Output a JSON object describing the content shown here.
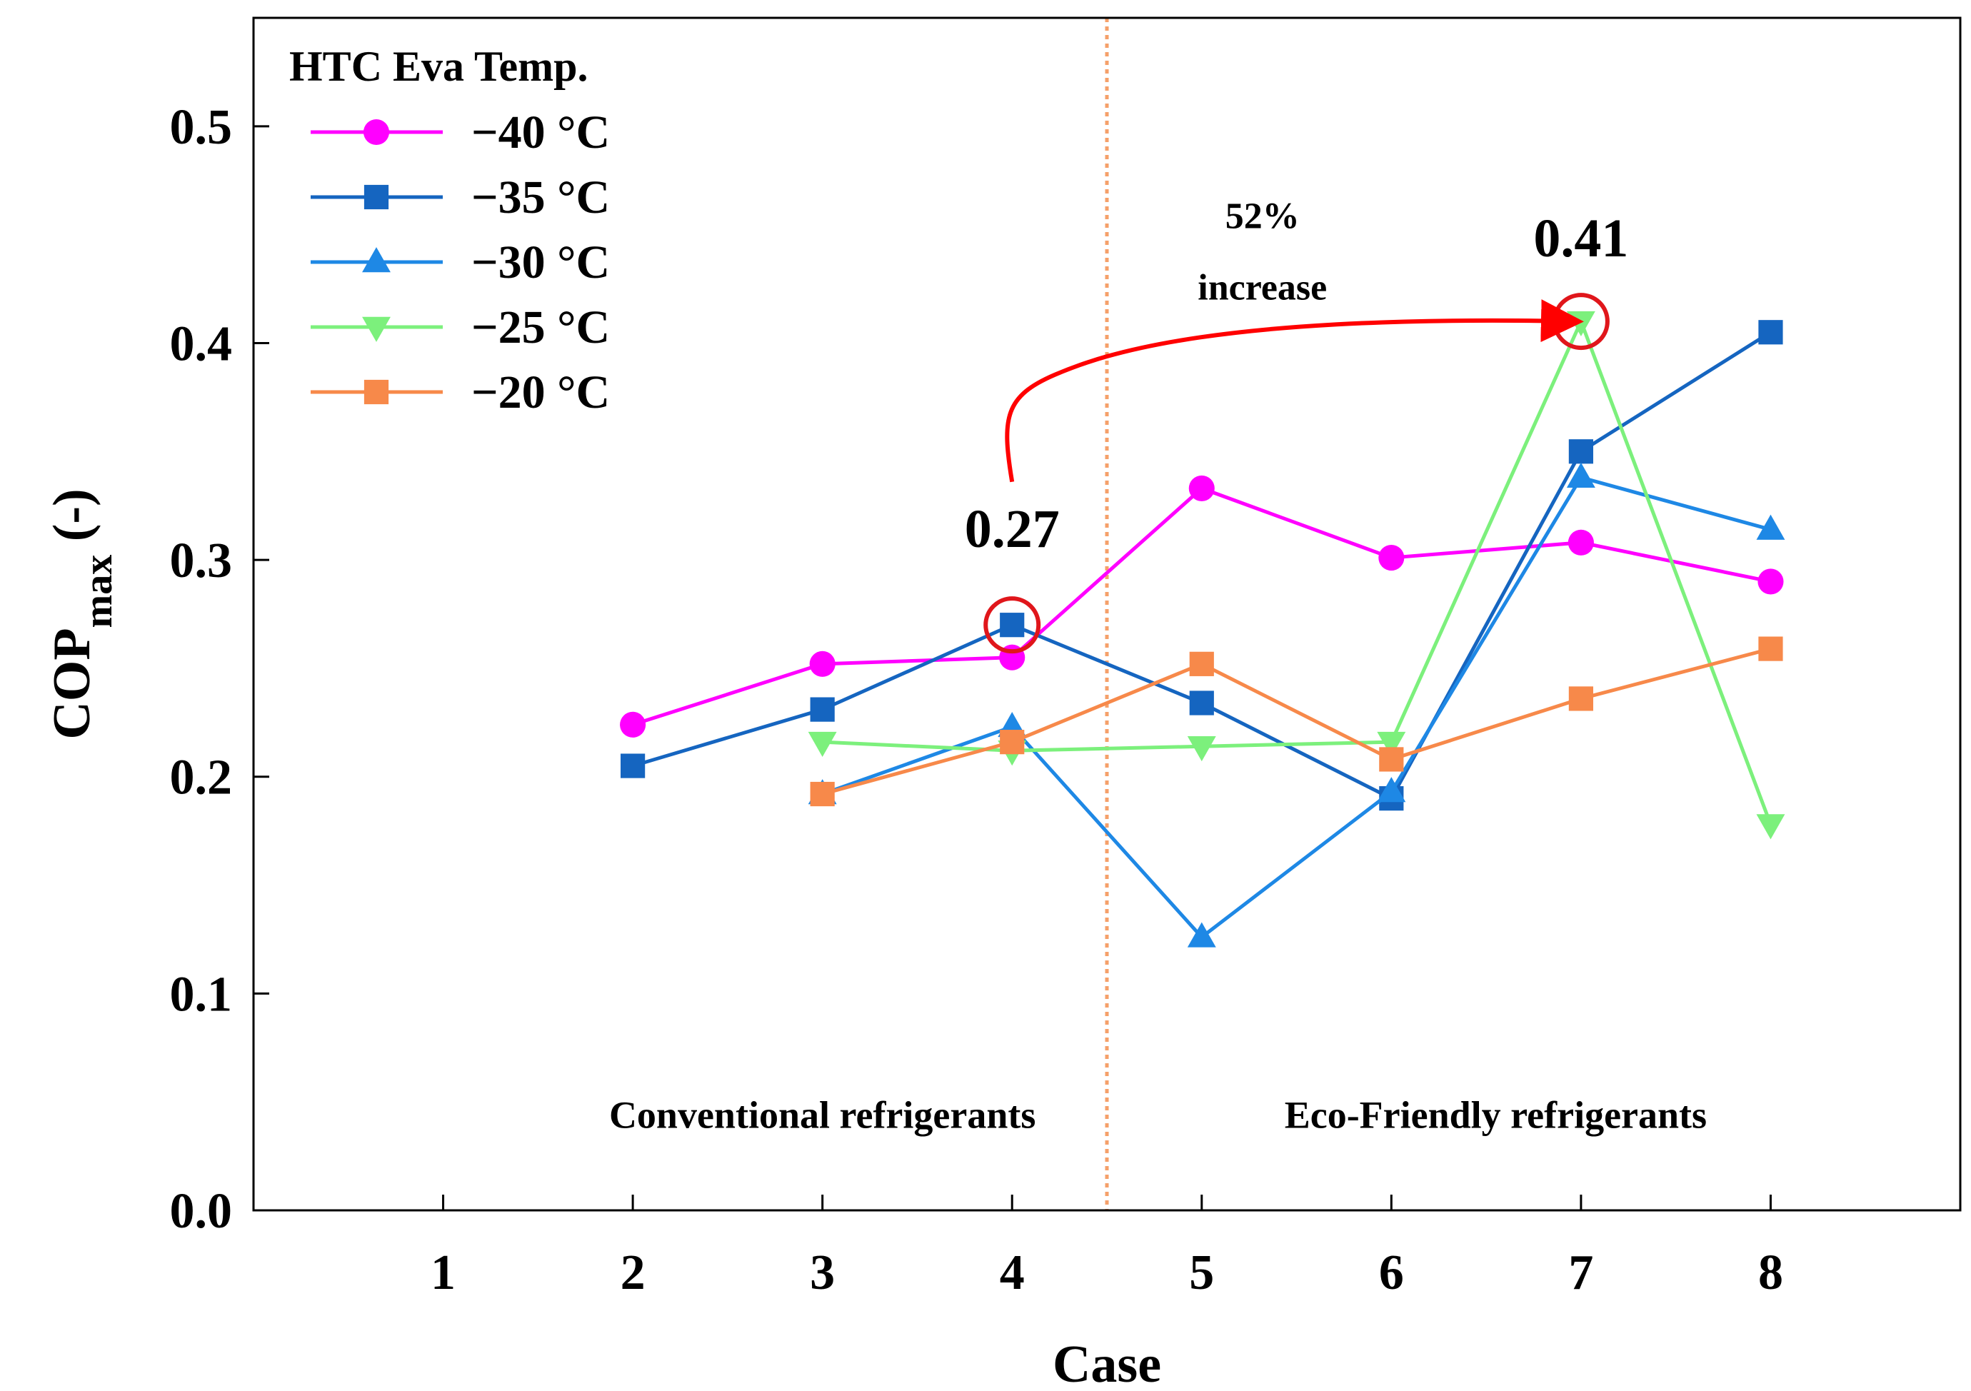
{
  "chart_data": {
    "type": "line",
    "title": "",
    "xlabel": "Case",
    "ylabel_main": "COP",
    "ylabel_sub": "max",
    "ylabel_suffix": " (-)",
    "xlim": [
      0,
      9
    ],
    "ylim": [
      0,
      0.55
    ],
    "x_ticks": [
      1,
      2,
      3,
      4,
      5,
      6,
      7,
      8
    ],
    "x_tick_labels": [
      "1",
      "2",
      "3",
      "4",
      "5",
      "6",
      "7",
      "8"
    ],
    "y_ticks": [
      0.0,
      0.1,
      0.2,
      0.3,
      0.4,
      0.5
    ],
    "y_tick_labels": [
      "0.0",
      "0.1",
      "0.2",
      "0.3",
      "0.4",
      "0.5"
    ],
    "legend_title": "HTC Eva Temp.",
    "legend_position": "top-left",
    "series": [
      {
        "name": "−40 °C",
        "color": "#ff00ff",
        "marker": "circle",
        "x": [
          2,
          3,
          4,
          5,
          6,
          7,
          8
        ],
        "values": [
          0.224,
          0.252,
          0.255,
          0.333,
          0.301,
          0.308,
          0.29
        ]
      },
      {
        "name": "−35 °C",
        "color": "#1565c0",
        "marker": "square",
        "x": [
          2,
          3,
          4,
          5,
          6,
          7,
          8
        ],
        "values": [
          0.205,
          0.231,
          0.27,
          0.234,
          0.19,
          0.35,
          0.405
        ]
      },
      {
        "name": "−30 °C",
        "color": "#1e88e5",
        "marker": "triangle-up",
        "x": [
          3,
          4,
          5,
          6,
          7,
          8
        ],
        "values": [
          0.192,
          0.223,
          0.126,
          0.193,
          0.338,
          0.314
        ]
      },
      {
        "name": "−25 °C",
        "color": "#7cf07c",
        "marker": "triangle-down",
        "x": [
          3,
          4,
          5,
          6,
          7,
          8
        ],
        "values": [
          0.216,
          0.212,
          0.214,
          0.216,
          0.41,
          0.178
        ]
      },
      {
        "name": "−20 °C",
        "color": "#f7894a",
        "marker": "square",
        "x": [
          3,
          4,
          5,
          6,
          7,
          8
        ],
        "values": [
          0.192,
          0.216,
          0.252,
          0.208,
          0.236,
          0.259
        ]
      }
    ],
    "divider": {
      "x": 4.5,
      "color": "#f5a06a"
    },
    "region_labels": [
      {
        "text": "Conventional refrigerants",
        "x": 3.0,
        "y": 0.038,
        "color": "#f4a47a"
      },
      {
        "text": "Eco-Friendly refrigerants",
        "x": 6.55,
        "y": 0.038,
        "color": "#8fa8e0"
      }
    ],
    "annotations": [
      {
        "text": "0.27",
        "x": 4,
        "y": 0.306,
        "color": "#222222"
      },
      {
        "text": "0.41",
        "x": 7,
        "y": 0.44,
        "color": "#222222"
      },
      {
        "text": "52%",
        "x": 5.32,
        "y": 0.453,
        "color": "#ff0000"
      },
      {
        "text": "increase",
        "x": 5.32,
        "y": 0.42,
        "color": "#ff0000"
      }
    ],
    "highlight_circles": [
      {
        "x": 4,
        "y": 0.27,
        "color": "#e0161b"
      },
      {
        "x": 7,
        "y": 0.41,
        "color": "#e0161b"
      }
    ],
    "arrow": {
      "from": [
        4.0,
        0.336
      ],
      "to": [
        6.97,
        0.41
      ],
      "color": "#ff0000"
    }
  }
}
